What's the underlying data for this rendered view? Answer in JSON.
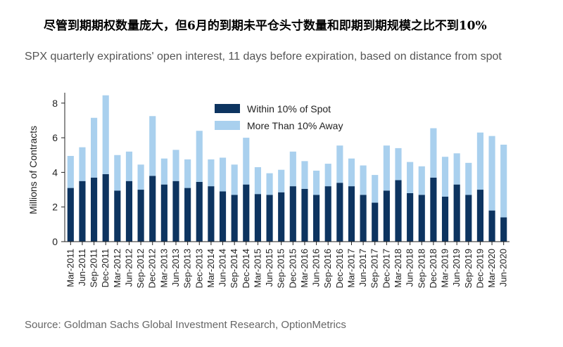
{
  "headline": "尽管到期期权数量庞大，但6月的到期未平仓头寸数量和即期到期规模之比不到10%",
  "source": "Source: Goldman Sachs Global Investment Research, OptionMetrics",
  "colors": {
    "within": "#0d3460",
    "beyond": "#a9d0ee"
  },
  "chart_data": {
    "type": "bar",
    "stacked": true,
    "title": "SPX quarterly expirations' open interest, 11 days before expiration, based on distance from spot",
    "ylabel": "Millions of Contracts",
    "xlabel": "",
    "ylim": [
      0,
      8.6
    ],
    "yticks": [
      0,
      2,
      4,
      6,
      8
    ],
    "legend_position": "top-center",
    "categories": [
      "Mar-2011",
      "Jun-2011",
      "Sep-2011",
      "Dec-2011",
      "Mar-2012",
      "Jun-2012",
      "Sep-2012",
      "Dec-2012",
      "Mar-2013",
      "Jun-2013",
      "Sep-2013",
      "Dec-2013",
      "Mar-2014",
      "Jun-2014",
      "Sep-2014",
      "Dec-2014",
      "Mar-2015",
      "Jun-2015",
      "Sep-2015",
      "Dec-2015",
      "Mar-2016",
      "Jun-2016",
      "Sep-2016",
      "Dec-2016",
      "Mar-2017",
      "Jun-2017",
      "Sep-2017",
      "Dec-2017",
      "Mar-2018",
      "Jun-2018",
      "Sep-2018",
      "Dec-2018",
      "Mar-2019",
      "Jun-2019",
      "Sep-2019",
      "Dec-2019",
      "Mar-2020",
      "Jun-2020"
    ],
    "series": [
      {
        "name": "Within 10% of Spot",
        "values": [
          3.1,
          3.5,
          3.7,
          3.9,
          2.95,
          3.5,
          3.0,
          3.8,
          3.3,
          3.5,
          3.1,
          3.45,
          3.2,
          2.9,
          2.7,
          3.3,
          2.75,
          2.7,
          2.85,
          3.2,
          3.05,
          2.7,
          3.2,
          3.4,
          3.2,
          2.7,
          2.25,
          2.95,
          3.55,
          2.8,
          2.7,
          3.7,
          2.6,
          3.3,
          2.7,
          3.0,
          1.8,
          1.4
        ]
      },
      {
        "name": "More Than 10% Away",
        "values": [
          1.85,
          1.95,
          3.45,
          4.55,
          2.05,
          1.7,
          1.45,
          3.45,
          1.5,
          1.8,
          1.65,
          2.95,
          1.55,
          1.95,
          1.75,
          2.7,
          1.55,
          1.25,
          1.3,
          2.0,
          1.6,
          1.4,
          1.3,
          2.15,
          1.6,
          1.7,
          1.6,
          2.6,
          1.85,
          1.8,
          1.65,
          2.85,
          2.3,
          1.8,
          1.85,
          3.3,
          4.3,
          4.2
        ]
      }
    ]
  }
}
